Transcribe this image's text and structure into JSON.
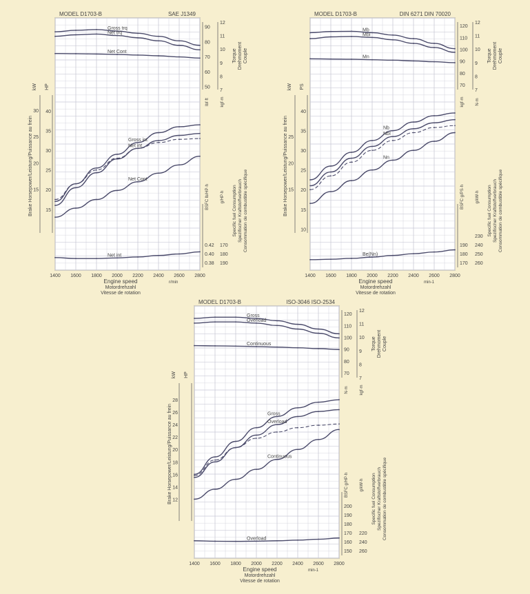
{
  "page": {
    "background": "#f7efcf",
    "grid_color": "#c9c9d6",
    "curve_color": "#4a4a6a",
    "plot_background": "#ffffff"
  },
  "chart_data": [
    {
      "id": "sae",
      "type": "line",
      "title": "MODEL D1703-B",
      "standard": "SAE J1349",
      "x": [
        1400,
        1600,
        1800,
        2000,
        2200,
        2400,
        2600,
        2800
      ],
      "xlabel": [
        "Engine speed",
        "Motordrehzahl",
        "Vitesse de rotation"
      ],
      "xunit": "r/min",
      "xlim": [
        1400,
        2800
      ],
      "y_left_outer_label": "Brake Horsepower/Leistung/Puissance au frein",
      "y_left_units": [
        "kW",
        "HP"
      ],
      "power_axis": {
        "ticks_kw": [
          15,
          20,
          25,
          30
        ],
        "ticks_hp": [
          15,
          20,
          25,
          30,
          35,
          40
        ],
        "range_hp": [
          9,
          43
        ]
      },
      "torque_axis": {
        "label": [
          "Torque",
          "Drehmoment",
          "Couple"
        ],
        "units": [
          "lbf·ft",
          "kgf·m"
        ],
        "ticks_lbft": [
          50,
          60,
          70,
          80,
          90
        ],
        "ticks_kgfm": [
          7,
          8,
          9,
          10,
          11,
          12
        ],
        "range_lbft": [
          48,
          93
        ]
      },
      "bsfc_axis": {
        "label": [
          "Specific fuel Consumption",
          "Spezifischer Kraftstoffverbrauch",
          "Consommation de combustible spécifique"
        ],
        "title": "BSFC lb/HP·h",
        "units": "g/HP·h",
        "ticks_lb": [
          "0.42",
          "0.40",
          "0.38"
        ],
        "ticks_g": [
          190,
          180,
          170
        ],
        "range": [
          0.36,
          0.5
        ]
      },
      "series": [
        {
          "name": "Gross trq",
          "axis": "torque",
          "values": [
            86.5,
            87.5,
            88,
            87,
            85.5,
            83.5,
            80.5,
            77.5
          ]
        },
        {
          "name": "Net trq",
          "axis": "torque",
          "values": [
            83.5,
            84.5,
            85,
            84,
            82.5,
            80.5,
            77.5,
            74.5
          ]
        },
        {
          "name": "Net Cont",
          "axis": "torque",
          "values": [
            72,
            71.9,
            71.7,
            71.4,
            71,
            70.5,
            69.8,
            69
          ]
        },
        {
          "name": "Gross int",
          "axis": "power",
          "values": [
            17,
            21.5,
            25.5,
            29,
            32,
            34.5,
            36,
            36.5
          ]
        },
        {
          "name": "Net int",
          "axis": "power",
          "values": [
            16,
            20.5,
            24.3,
            27.8,
            30.5,
            32.5,
            33.8,
            34.3
          ]
        },
        {
          "name": "",
          "axis": "power",
          "dashed": true,
          "values": [
            17.5,
            21.5,
            25,
            28,
            30.5,
            32,
            32.8,
            33
          ]
        },
        {
          "name": "Net Cont",
          "axis": "power",
          "values": [
            13,
            15.3,
            17.5,
            19.8,
            22,
            24.2,
            26.3,
            28.5
          ]
        },
        {
          "name": "Net int",
          "axis": "bsfc",
          "values": [
            0.392,
            0.389,
            0.389,
            0.391,
            0.394,
            0.399,
            0.404,
            0.411
          ]
        }
      ]
    },
    {
      "id": "din",
      "type": "line",
      "title": "MODEL D1703-B",
      "standard": "DIN 6271   DIN 70020",
      "x": [
        1400,
        1600,
        1800,
        2000,
        2200,
        2400,
        2600,
        2800
      ],
      "xlabel": [
        "Engine speed",
        "Motordrehzahl",
        "Vitesse de rotation"
      ],
      "xunit": "min-1",
      "xlim": [
        1400,
        2800
      ],
      "y_left_outer_label": "Brake Horsepower/Leistung/Puissance au frein",
      "y_left_units": [
        "kW",
        "PS"
      ],
      "power_axis": {
        "ticks_kw": [
          15,
          20,
          25
        ],
        "ticks_hp": [
          10,
          15,
          20,
          25,
          30,
          35,
          40
        ],
        "range_hp": [
          9,
          43
        ]
      },
      "torque_axis": {
        "label": [
          "Torque",
          "Drehmoment",
          "Couple"
        ],
        "units": [
          "kgf·m",
          "N·m"
        ],
        "ticks_lbft": [
          70,
          80,
          90,
          100,
          110,
          120
        ],
        "ticks_kgfm": [
          7,
          8,
          9,
          10,
          11,
          12
        ],
        "range_lbft": [
          66,
          123
        ]
      },
      "bsfc_axis": {
        "label": [
          "Specific fuel Consumption",
          "Spezifischer Kraftstoffverbrauch",
          "Consommation de combustible spécifique"
        ],
        "title": "BSFC g/PS·h",
        "units": "g/kW·h",
        "ticks_lb": [
          "190",
          "180",
          "170"
        ],
        "ticks_g": [
          260,
          250,
          240,
          230
        ],
        "range": [
          165,
          215
        ]
      },
      "series": [
        {
          "name": "Mb",
          "axis": "torque",
          "values": [
            114,
            115,
            115.2,
            114,
            112,
            109,
            105,
            100.5
          ]
        },
        {
          "name": "MbI",
          "axis": "torque",
          "values": [
            109,
            110.5,
            110.8,
            110,
            108,
            105,
            101.5,
            97.5
          ]
        },
        {
          "name": "Mn",
          "axis": "torque",
          "values": [
            92,
            91.8,
            91.6,
            91.2,
            90.8,
            90.2,
            89.5,
            88.7
          ]
        },
        {
          "name": "Nb",
          "axis": "power",
          "values": [
            22.5,
            26,
            29.5,
            32.5,
            35,
            37.2,
            38.8,
            39.5
          ]
        },
        {
          "name": "NbI",
          "axis": "power",
          "values": [
            21,
            24.5,
            28,
            31,
            33.5,
            35.5,
            37,
            37.8
          ]
        },
        {
          "name": "",
          "axis": "power",
          "dashed": true,
          "values": [
            20,
            23.5,
            27,
            30,
            32.5,
            34.5,
            35.8,
            36.3
          ]
        },
        {
          "name": "Nn",
          "axis": "power",
          "values": [
            16.5,
            19.5,
            22.3,
            25,
            27.5,
            30,
            32.3,
            34.5
          ]
        },
        {
          "name": "Be(Nn)",
          "axis": "bsfc",
          "values": [
            174,
            174.5,
            175.5,
            177,
            179,
            181,
            183,
            185.5
          ]
        }
      ]
    },
    {
      "id": "iso",
      "type": "line",
      "title": "MODEL D1703-B",
      "standard": "ISO-3046   ISO-2534",
      "x": [
        1400,
        1600,
        1800,
        2000,
        2200,
        2400,
        2600,
        2800
      ],
      "xlabel": [
        "Engine speed",
        "Motordrehzahl",
        "Vitesse de rotation"
      ],
      "xunit": "min-1",
      "xlim": [
        1400,
        2800
      ],
      "y_left_outer_label": "Brake Horsepower/Leistung/Puissance au frein",
      "y_left_units": [
        "kW",
        "HP"
      ],
      "power_axis": {
        "ticks_kw": [
          12,
          14,
          16,
          18,
          20,
          22,
          24,
          26,
          28
        ],
        "ticks_hp": [],
        "range_hp": [
          8.5,
          30
        ]
      },
      "torque_axis": {
        "label": [
          "Torque",
          "Drehmoment",
          "Couple"
        ],
        "units": [
          "N·m",
          "kgf·m"
        ],
        "ticks_lbft": [
          70,
          80,
          90,
          100,
          110,
          120
        ],
        "ticks_kgfm": [
          7,
          8,
          9,
          10,
          11,
          12
        ],
        "range_lbft": [
          66,
          123
        ]
      },
      "bsfc_axis": {
        "label": [
          "Specific fuel Consumption",
          "Spezifischer Kraftstoffverbrauch",
          "Consommation de combustible spécifique"
        ],
        "title": "BSFC g/HP·h",
        "units": "g/kW·h",
        "ticks_lb": [
          "200",
          "190",
          "180",
          "170",
          "160",
          "150"
        ],
        "ticks_g": [
          260,
          240,
          220
        ],
        "range": [
          145,
          215
        ]
      },
      "series": [
        {
          "name": "Gross",
          "axis": "torque",
          "values": [
            116,
            117,
            117,
            116,
            114,
            111,
            107,
            103
          ]
        },
        {
          "name": "Overload",
          "axis": "torque",
          "values": [
            112,
            113,
            113,
            112,
            110,
            107,
            103.5,
            99.5
          ]
        },
        {
          "name": "Continuous",
          "axis": "torque",
          "values": [
            93,
            92.8,
            92.6,
            92.2,
            91.8,
            91.2,
            90.5,
            89.7
          ]
        },
        {
          "name": "Gross",
          "axis": "power",
          "values": [
            16,
            18.8,
            21.3,
            23.5,
            25.3,
            26.7,
            27.6,
            28
          ]
        },
        {
          "name": "Overload",
          "axis": "power",
          "values": [
            15.5,
            18,
            20.3,
            22.3,
            24,
            25.3,
            26.1,
            26.4
          ]
        },
        {
          "name": "",
          "axis": "power",
          "dashed": true,
          "values": [
            15.8,
            18.3,
            20.3,
            21.8,
            22.8,
            23.5,
            23.9,
            24.1
          ]
        },
        {
          "name": "Continuous",
          "axis": "power",
          "values": [
            12,
            13.6,
            15.2,
            16.8,
            18.4,
            20,
            21.6,
            23.2
          ]
        },
        {
          "name": "Overload",
          "axis": "bsfc",
          "values": [
            169,
            168.2,
            168,
            168.3,
            169,
            170,
            171.5,
            173.5
          ]
        }
      ]
    }
  ]
}
